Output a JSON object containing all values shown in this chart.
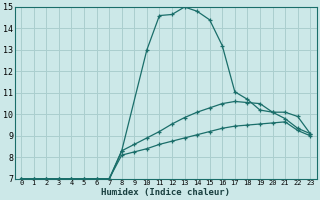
{
  "xlabel": "Humidex (Indice chaleur)",
  "bg_color": "#cce8e8",
  "grid_color": "#aacece",
  "line_color": "#1a6e6a",
  "xlim": [
    -0.5,
    23.5
  ],
  "ylim": [
    7,
    15
  ],
  "xticks": [
    0,
    1,
    2,
    3,
    4,
    5,
    6,
    7,
    8,
    9,
    10,
    11,
    12,
    13,
    14,
    15,
    16,
    17,
    18,
    19,
    20,
    21,
    22,
    23
  ],
  "yticks": [
    7,
    8,
    9,
    10,
    11,
    12,
    13,
    14,
    15
  ],
  "curve_main_x": [
    0,
    1,
    2,
    3,
    4,
    5,
    6,
    7,
    8,
    10,
    11,
    12,
    13,
    14,
    15,
    16,
    17,
    18,
    19,
    20,
    21,
    22,
    23
  ],
  "curve_main_y": [
    7,
    7,
    7,
    7,
    7,
    7,
    7,
    7,
    8.3,
    13.0,
    14.6,
    14.65,
    15.0,
    14.8,
    14.4,
    13.2,
    11.05,
    10.7,
    10.2,
    10.1,
    10.1,
    9.9,
    9.1
  ],
  "curve_mid_x": [
    0,
    1,
    2,
    3,
    4,
    5,
    6,
    7,
    8,
    9,
    10,
    11,
    12,
    13,
    14,
    15,
    16,
    17,
    18,
    19,
    20,
    21,
    22,
    23
  ],
  "curve_mid_y": [
    7,
    7,
    7,
    7,
    7,
    7,
    7,
    6.95,
    8.3,
    8.6,
    8.9,
    9.2,
    9.55,
    9.85,
    10.1,
    10.3,
    10.5,
    10.6,
    10.55,
    10.5,
    10.1,
    9.8,
    9.35,
    9.1
  ],
  "curve_low_x": [
    0,
    1,
    2,
    3,
    4,
    5,
    6,
    7,
    8,
    9,
    10,
    11,
    12,
    13,
    14,
    15,
    16,
    17,
    18,
    19,
    20,
    21,
    22,
    23
  ],
  "curve_low_y": [
    7,
    7,
    7,
    7,
    7,
    7,
    7,
    7,
    8.1,
    8.25,
    8.4,
    8.6,
    8.75,
    8.9,
    9.05,
    9.2,
    9.35,
    9.45,
    9.5,
    9.55,
    9.6,
    9.65,
    9.25,
    9.0
  ]
}
